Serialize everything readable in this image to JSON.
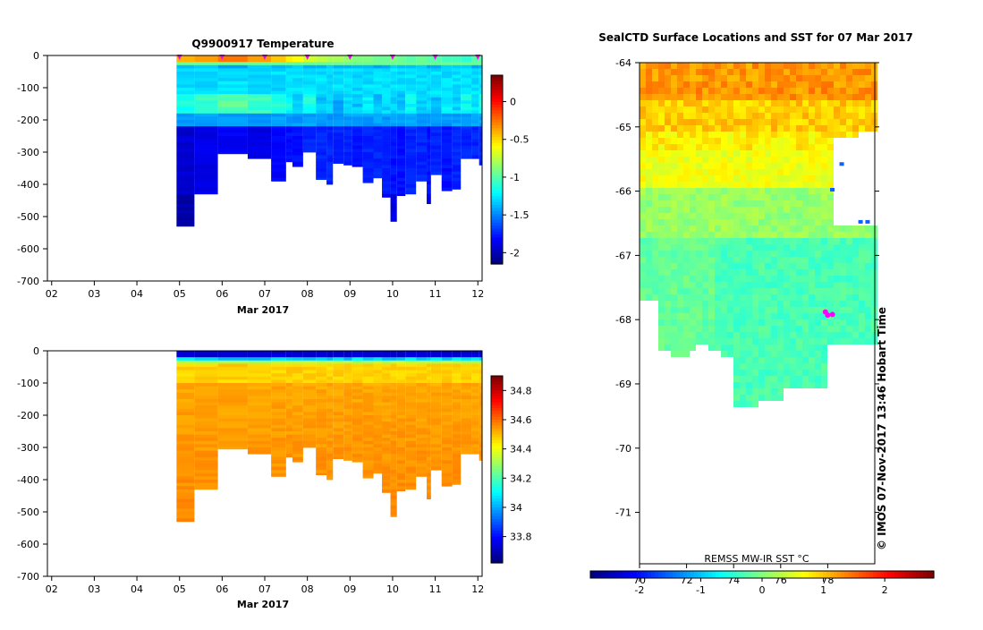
{
  "colors": {
    "jet": [
      "#00007f",
      "#0000ff",
      "#007fff",
      "#00ffff",
      "#7fff7f",
      "#ffff00",
      "#ff7f00",
      "#ff0000",
      "#7f0000"
    ],
    "profile_marker": "#ff00ff",
    "land": "#ffffff"
  },
  "chart_data": [
    {
      "type": "heatmap",
      "title": "Q9900917  Temperature",
      "xlabel": "Mar 2017",
      "ylabel": "",
      "x_tick_labels": [
        "02",
        "03",
        "04",
        "05",
        "06",
        "07",
        "08",
        "09",
        "10",
        "11",
        "12"
      ],
      "x_tick_values": [
        2,
        3,
        4,
        5,
        6,
        7,
        8,
        9,
        10,
        11,
        12
      ],
      "xlim": [
        1.9,
        12.1
      ],
      "y_tick_labels": [
        "0",
        "-100",
        "-200",
        "-300",
        "-400",
        "-500",
        "-600",
        "-700"
      ],
      "y_tick_values": [
        0,
        -100,
        -200,
        -300,
        -400,
        -500,
        -600,
        -700
      ],
      "ylim": [
        -700,
        0
      ],
      "colorbar": {
        "ticks": [
          "0",
          "-0.5",
          "-1",
          "-1.5",
          "-2"
        ],
        "tick_values": [
          0,
          -0.5,
          -1,
          -1.5,
          -2
        ],
        "range": [
          -2.15,
          0.35
        ]
      },
      "profile_markers_x": [
        5,
        6,
        7,
        8,
        9,
        10,
        11,
        12
      ],
      "profiles": {
        "x_start": [
          4.93,
          5.35,
          5.9,
          6.6,
          7.15,
          7.5,
          7.65,
          7.9,
          8.2,
          8.45,
          8.6,
          8.85,
          9.05,
          9.3,
          9.55,
          9.75,
          9.95,
          10.1,
          10.3,
          10.55,
          10.8,
          10.9,
          11.15,
          11.4,
          11.6,
          11.85,
          12.03
        ],
        "x_end": [
          5.35,
          5.9,
          6.6,
          7.15,
          7.5,
          7.65,
          7.9,
          8.2,
          8.45,
          8.6,
          8.85,
          9.05,
          9.3,
          9.55,
          9.75,
          9.95,
          10.1,
          10.3,
          10.55,
          10.8,
          10.9,
          11.15,
          11.4,
          11.6,
          11.85,
          12.03,
          12.1
        ],
        "max_depth": [
          530,
          430,
          305,
          320,
          390,
          330,
          345,
          300,
          385,
          400,
          335,
          340,
          345,
          395,
          380,
          440,
          515,
          435,
          430,
          390,
          460,
          370,
          420,
          415,
          320,
          320,
          340
        ],
        "surface_temp": [
          -0.4,
          -0.35,
          -0.25,
          -0.35,
          -0.45,
          -0.55,
          -0.6,
          -0.7,
          -0.75,
          -0.8,
          -0.8,
          -0.85,
          -0.9,
          -0.9,
          -0.95,
          -0.95,
          -0.9,
          -0.95,
          -1.0,
          -0.95,
          -1.0,
          -1.0,
          -1.05,
          -1.05,
          -1.1,
          -1.0,
          -1.0
        ],
        "warm_core_temp": [
          -1.15,
          -1.1,
          -1.0,
          -1.05,
          -1.15,
          -1.2,
          -1.3,
          -1.15,
          -1.35,
          -1.3,
          -1.4,
          -1.3,
          -1.35,
          -1.25,
          -1.35,
          -1.3,
          -1.3,
          -1.35,
          -1.2,
          -1.35,
          -1.3,
          -1.35,
          -1.25,
          -1.3,
          -1.2,
          -1.25,
          -1.15
        ],
        "deep_temp": [
          -1.95,
          -1.9,
          -1.85,
          -1.9,
          -1.85,
          -1.8,
          -1.8,
          -1.75,
          -1.75,
          -1.75,
          -1.75,
          -1.75,
          -1.8,
          -1.75,
          -1.75,
          -1.75,
          -1.8,
          -1.8,
          -1.75,
          -1.75,
          -1.8,
          -1.75,
          -1.8,
          -1.75,
          -1.75,
          -1.75,
          -1.75
        ]
      }
    },
    {
      "type": "heatmap",
      "title": "",
      "xlabel": "Mar 2017",
      "ylabel": "",
      "x_tick_labels": [
        "02",
        "03",
        "04",
        "05",
        "06",
        "07",
        "08",
        "09",
        "10",
        "11",
        "12"
      ],
      "x_tick_values": [
        2,
        3,
        4,
        5,
        6,
        7,
        8,
        9,
        10,
        11,
        12
      ],
      "xlim": [
        1.9,
        12.1
      ],
      "y_tick_labels": [
        "0",
        "-100",
        "-200",
        "-300",
        "-400",
        "-500",
        "-600",
        "-700"
      ],
      "y_tick_values": [
        0,
        -100,
        -200,
        -300,
        -400,
        -500,
        -600,
        -700
      ],
      "ylim": [
        -700,
        0
      ],
      "colorbar": {
        "ticks": [
          "34.8",
          "34.6",
          "34.4",
          "34.2",
          "34",
          "33.8"
        ],
        "tick_values": [
          34.8,
          34.6,
          34.4,
          34.2,
          34.0,
          33.8
        ],
        "range": [
          33.62,
          34.9
        ]
      },
      "surface_salinity": 33.7,
      "deep_salinity": 34.52,
      "mixed_layer_depth": [
        25,
        25,
        25,
        28,
        28,
        28,
        30,
        30,
        32,
        30,
        28,
        28,
        26,
        26,
        30,
        28,
        28,
        30,
        28,
        28,
        26,
        26,
        28,
        28,
        30,
        28,
        28
      ]
    },
    {
      "type": "heatmap",
      "title": "SealCTD Surface Locations and SST for 07 Mar 2017",
      "xlabel": "",
      "ylabel": "",
      "y_tick_labels": [
        "-64",
        "-65",
        "-66",
        "-67",
        "-68",
        "-69",
        "-70",
        "-71"
      ],
      "y_tick_values": [
        -64,
        -65,
        -66,
        -67,
        -68,
        -69,
        -70,
        -71
      ],
      "ylim": [
        -71.8,
        -64
      ],
      "x_tick_labels": [
        "70",
        "72",
        "74",
        "76",
        "78"
      ],
      "x_tick_values": [
        70,
        72,
        74,
        76,
        78
      ],
      "xlim": [
        70,
        80
      ],
      "colorbar": {
        "ticks": [
          "-2",
          "-1",
          "0",
          "1",
          "2"
        ],
        "tick_values": [
          -2,
          -1,
          0,
          1,
          2
        ],
        "range": [
          -2.8,
          2.8
        ],
        "label": "REMSS MW-IR SST °C"
      },
      "credit": "© IMOS 07-Nov-2017 13:46 Hobart Time",
      "seal_locations": [
        {
          "lon": 77.9,
          "lat": -67.88
        },
        {
          "lon": 78.0,
          "lat": -67.93
        },
        {
          "lon": 78.2,
          "lat": -67.92
        }
      ]
    }
  ]
}
